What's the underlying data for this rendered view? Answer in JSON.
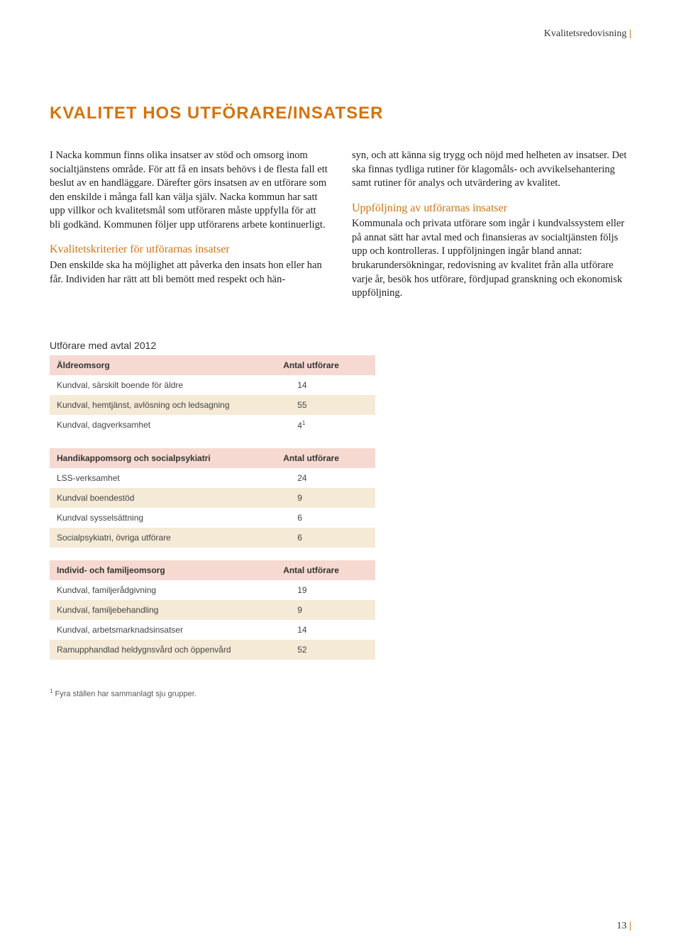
{
  "header": {
    "label": "Kvalitetsredovisning",
    "bar": "|"
  },
  "title": "KVALITET HOS UTFÖRARE/INSATSER",
  "col1": {
    "p1": "I Nacka kommun finns olika insatser av stöd och omsorg inom socialtjänstens område. För att få en insats behövs i de flesta fall ett beslut av en handläggare. Därefter görs insatsen av en utförare som den enskilde i många fall kan välja själv. Nacka kommun har satt upp villkor och kvalitetsmål som utföraren måste uppfylla för att bli godkänd. Kommunen följer upp utförarens arbete kontinuerligt.",
    "sub": "Kvalitetskriterier för utförarnas insatser",
    "p2": "Den enskilde ska ha möjlighet att påverka den insats hon eller han får. Individen har rätt att bli bemött med respekt och hän-"
  },
  "col2": {
    "p1": "syn, och att känna sig trygg och nöjd med helheten av insatser. Det ska finnas tydliga rutiner för klagomåls- och avvikelsehantering samt rutiner för analys och utvärdering av kvalitet.",
    "sub": "Uppföljning av utförarnas insatser",
    "p2": "Kommunala och privata utförare som ingår i kundvalssystem eller på annat sätt har avtal med och finansieras av socialtjänsten följs upp och kontrolleras. I uppföljningen ingår bland annat: brukarundersökningar, redovisning av kvalitet från alla utförare varje år, besök hos utförare, fördjupad granskning och ekonomisk uppföljning."
  },
  "tableTitle": "Utförare med avtal 2012",
  "countHeader": "Antal utförare",
  "sections": [
    {
      "heading": "Äldreomsorg",
      "rows": [
        {
          "label": "Kundval, särskilt boende för äldre",
          "value": "14",
          "sup": ""
        },
        {
          "label": "Kundval, hemtjänst, avlösning och ledsagning",
          "value": "55",
          "sup": ""
        },
        {
          "label": "Kundval, dagverksamhet",
          "value": "4",
          "sup": "1"
        }
      ]
    },
    {
      "heading": "Handikappomsorg och socialpsykiatri",
      "rows": [
        {
          "label": "LSS-verksamhet",
          "value": "24",
          "sup": ""
        },
        {
          "label": "Kundval boendestöd",
          "value": "9",
          "sup": ""
        },
        {
          "label": "Kundval sysselsättning",
          "value": "6",
          "sup": ""
        },
        {
          "label": "Socialpsykiatri, övriga utförare",
          "value": "6",
          "sup": ""
        }
      ]
    },
    {
      "heading": "Individ- och familjeomsorg",
      "rows": [
        {
          "label": "Kundval, familjerådgivning",
          "value": "19",
          "sup": ""
        },
        {
          "label": "Kundval, familjebehandling",
          "value": "9",
          "sup": ""
        },
        {
          "label": "Kundval, arbetsmarknadsinsatser",
          "value": "14",
          "sup": ""
        },
        {
          "label": "Ramupphandlad heldygnsvård och öppenvård",
          "value": "52",
          "sup": ""
        }
      ]
    }
  ],
  "footnote": {
    "num": "1",
    "text": " Fyra ställen har sammanlagt sju grupper."
  },
  "pageNumber": "13",
  "colors": {
    "accent": "#d4730d",
    "headerRow": "#f6d9d0",
    "oddRow": "#f4ead6",
    "evenRow": "#ffffff"
  }
}
